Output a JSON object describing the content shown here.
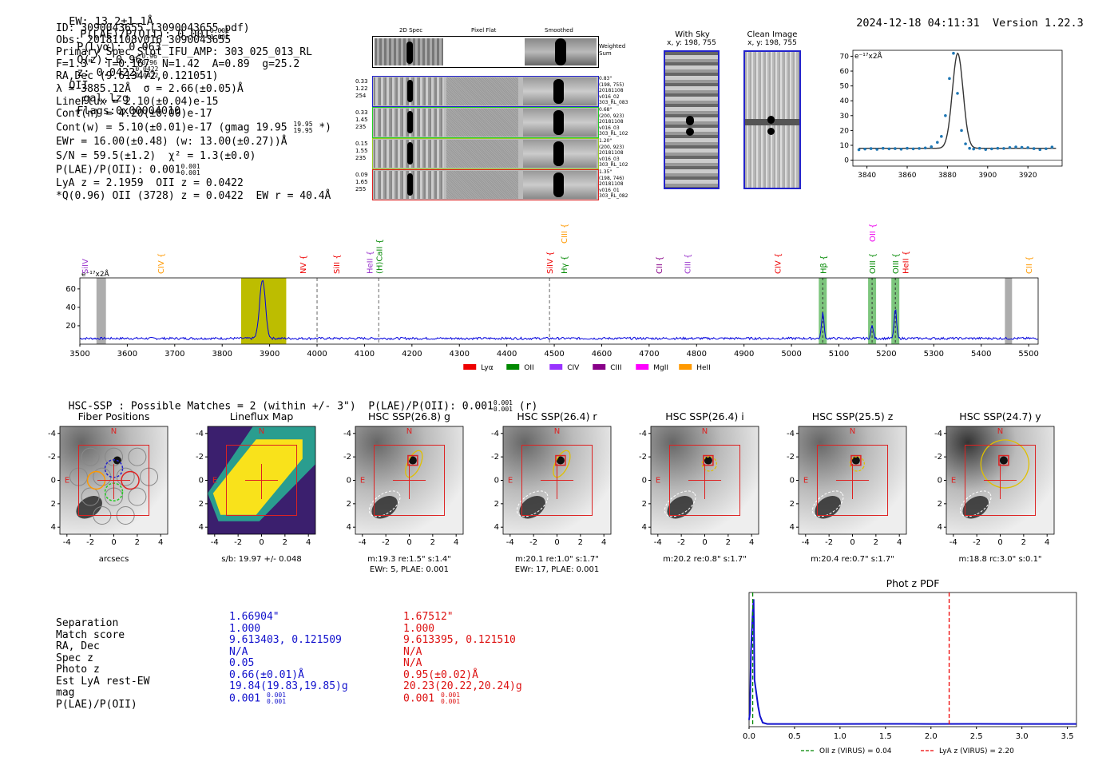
{
  "header": {
    "ew": "EW: 13.2±1.1Å",
    "plae_lbl": "P(LAE)/P(OII): 0.001",
    "plae_sup": "0.001",
    "plae_sub": "0.001",
    "plya": "P(Lyα): 0.063",
    "qz_lbl": "Q(z): 0.96",
    "qz_sup": "0.96",
    "qz_sub": "0.96",
    "z_lbl": "z: 0.0422",
    "z_sup": "0.0422",
    "z_sub": "0.0422",
    "z_line": "OII",
    "class": "gal,lzg",
    "flags": "Flags:0x00004010",
    "date": "2024-12-18 04:11:31",
    "version": "Version 1.22.3"
  },
  "info": {
    "id": "ID: 3090043655 (3090043655.pdf)",
    "obs": "Obs: 20181108v016_3090043655",
    "primary": "Primary Spec_Slot_IFU_AMP: 303_025_013_RL",
    "f_line": "F=1.3\"  T=0.167  N=1.42  A=0.89  g=25.2",
    "radec": "RA,Dec (9.613472,0.121051)",
    "lambda": "λ = 3885.12Å  σ = 2.66(±0.05)Å",
    "lineflux": "LineFlux = 2.10(±0.04)e-15",
    "contn": "Cont(n) = 4.20(±0.00)e-17",
    "contw_a": "Cont(w) = 5.10(±0.01)e-17 (gmag 19.95",
    "contw_sup": "19.95",
    "contw_sub": "19.95",
    "contw_b": "*)",
    "ewr": "EWr = 16.00(±0.48) (w: 13.00(±0.27))Å",
    "sn": "S/N = 59.5(±1.2)  χ² = 1.3(±0.0)",
    "plae_a": "P(LAE)/P(OII): 0.001",
    "plae_sup": "0.001",
    "plae_sub": "0.001",
    "lya": "LyA z = 2.1959  OII z = 0.0422",
    "qline": "*Q(0.96) OII (3728) z = 0.0422  EW r = 40.4Å"
  },
  "cutouts": {
    "col_labels": [
      "2D Spec",
      "Pixel Flat",
      "Smoothed"
    ],
    "weighted_label": "Weighted Sum",
    "rows": [
      {
        "left": [
          "0.33",
          "1.22",
          "254"
        ],
        "right": [
          "0.83\"",
          "(198, 755)",
          "20181108",
          "v016_02",
          "303_RL_083"
        ],
        "color": "#2222cc"
      },
      {
        "left": [
          "0.33",
          "1.45",
          "235"
        ],
        "right": [
          "0.68\"",
          "(200, 923)",
          "20181108",
          "v016_03",
          "303_RL_102"
        ],
        "color": "#22cc22"
      },
      {
        "left": [
          "0.15",
          "1.55",
          "235"
        ],
        "right": [
          "1.20\"",
          "(200, 923)",
          "20181108",
          "v016_03",
          "303_RL_102"
        ],
        "color": "#99cc22"
      },
      {
        "left": [
          "0.09",
          "1.65",
          "255"
        ],
        "right": [
          "1.35\"",
          "(198, 746)",
          "20181108",
          "v016_01",
          "303_RL_082"
        ],
        "color": "#dd2222"
      }
    ],
    "with_sky": "With Sky",
    "with_sky_xy": "x, y: 198, 755",
    "clean": "Clean Image",
    "clean_xy": "x, y: 198, 755"
  },
  "zoom_chart": {
    "type": "line",
    "ylabel": "e⁻¹⁷x2Å",
    "xticks": [
      3840,
      3860,
      3880,
      3900,
      3920
    ],
    "yticks": [
      0,
      10,
      20,
      30,
      40,
      50,
      60,
      70
    ],
    "xlim": [
      3833,
      3937
    ],
    "ylim": [
      -4,
      74
    ],
    "data_x": [
      3836,
      3839,
      3842,
      3845,
      3848,
      3851,
      3854,
      3857,
      3860,
      3863,
      3866,
      3869,
      3872,
      3875,
      3877,
      3879,
      3881,
      3883,
      3885,
      3887,
      3889,
      3891,
      3893,
      3896,
      3899,
      3902,
      3905,
      3908,
      3911,
      3914,
      3917,
      3920,
      3923,
      3926,
      3929,
      3932
    ],
    "data_y": [
      7,
      7.5,
      7.8,
      7.3,
      8,
      7.6,
      7.8,
      7.4,
      8,
      7.6,
      7.9,
      8.2,
      9,
      12,
      16,
      30,
      55,
      72,
      45,
      20,
      11,
      8,
      7.5,
      8,
      7.2,
      7.6,
      8,
      7.9,
      8.5,
      8.9,
      8.6,
      8.4,
      7.8,
      7.1,
      7.7,
      8.8
    ]
  },
  "full_spectrum": {
    "type": "line",
    "ylabel": "e⁻¹⁷x2Å",
    "xticks": [
      3500,
      3600,
      3700,
      3800,
      3900,
      4000,
      4100,
      4200,
      4300,
      4400,
      4500,
      4600,
      4700,
      4800,
      4900,
      5000,
      5100,
      5200,
      5300,
      5400,
      5500
    ],
    "yticks": [
      20,
      40,
      60
    ],
    "xlim": [
      3500,
      5520
    ],
    "ylim": [
      0,
      72
    ],
    "line_labels": [
      {
        "text": "SiIV",
        "x": 3510,
        "color": "#9933cc"
      },
      {
        "text": "CIV {",
        "x": 3670,
        "color": "#ff9900"
      },
      {
        "text": "NV {",
        "x": 3970,
        "color": "#ee0000"
      },
      {
        "text": "SiII {",
        "x": 4040,
        "color": "#ee0000"
      },
      {
        "text": "HeII {",
        "x": 4110,
        "color": "#9933cc"
      },
      {
        "text": "(H)CaII {",
        "x": 4130,
        "color": "#008800"
      },
      {
        "text": "SiIV {",
        "x": 4490,
        "color": "#ee0000"
      },
      {
        "text": "Hγ {",
        "x": 4520,
        "color": "#008800"
      },
      {
        "text": "CIII {",
        "x": 4520,
        "color": "#ff9900"
      },
      {
        "text": "CII {",
        "x": 4720,
        "color": "#880088"
      },
      {
        "text": "CIII {",
        "x": 4780,
        "color": "#9933cc"
      },
      {
        "text": "CIV {",
        "x": 4970,
        "color": "#ee0000"
      },
      {
        "text": "Hβ {",
        "x": 5066,
        "color": "#008800"
      },
      {
        "text": "OIII {",
        "x": 5170,
        "color": "#008800"
      },
      {
        "text": "OII {",
        "x": 5170,
        "color": "#ee00ee"
      },
      {
        "text": "OIII {",
        "x": 5219,
        "color": "#008800"
      },
      {
        "text": "HeII {",
        "x": 5240,
        "color": "#ee0000"
      },
      {
        "text": "CII {",
        "x": 5500,
        "color": "#ff9900"
      }
    ],
    "legend": [
      {
        "name": "Lyα",
        "color": "#ee0000"
      },
      {
        "name": "OII",
        "color": "#008800"
      },
      {
        "name": "CIV",
        "color": "#9933ff"
      },
      {
        "name": "CIII",
        "color": "#880088"
      },
      {
        "name": "MgII",
        "color": "#ff00ff"
      },
      {
        "name": "HeII",
        "color": "#ff9900"
      }
    ]
  },
  "hsc": {
    "title_a": "HSC-SSP : Possible Matches = 2 (within +/- 3\")  P(LAE)/P(OII): 0.001",
    "title_sup": "0.001",
    "title_sub": "0.001",
    "title_b": "(r)",
    "panels": [
      {
        "title": "Fiber Positions",
        "cap1": "arcsecs",
        "cap2": ""
      },
      {
        "title": "Lineflux Map",
        "cap1": "s/b: 19.97 +/- 0.048",
        "cap2": ""
      },
      {
        "title": "HSC SSP(26.8) g",
        "cap1": "m:19.3  re:1.5\"  s:1.4\"",
        "cap2": "EWr: 5, PLAE: 0.001"
      },
      {
        "title": "HSC SSP(26.4) r",
        "cap1": "m:20.1  re:1.0\"  s:1.7\"",
        "cap2": "EWr: 17, PLAE: 0.001"
      },
      {
        "title": "HSC SSP(26.4) i",
        "cap1": "m:20.2  re:0.8\"  s:1.7\"",
        "cap2": ""
      },
      {
        "title": "HSC SSP(25.5) z",
        "cap1": "m:20.4  re:0.7\"  s:1.7\"",
        "cap2": ""
      },
      {
        "title": "HSC SSP(24.7) y",
        "cap1": "m:18.8  rc:3.0\"  s:0.1\"",
        "cap2": ""
      }
    ],
    "axis_ticks": [
      "-4",
      "-2",
      "0",
      "2",
      "4"
    ],
    "north": "N",
    "east": "E"
  },
  "matches": {
    "labels": [
      "Separation",
      "Match score",
      "RA, Dec",
      "Spec z",
      "Photo z",
      "Est LyA rest-EW",
      "mag",
      "P(LAE)/P(OII)"
    ],
    "col1": [
      "1.66904\"",
      "1.000",
      "9.613403, 0.121509",
      "N/A",
      "0.05",
      "0.66(±0.01)Å",
      "19.84(19.83,19.85)g",
      "0.001"
    ],
    "col1_plae_sup": "0.001",
    "col1_plae_sub": "0.001",
    "col2": [
      "1.67512\"",
      "1.000",
      "9.613395, 0.121510",
      "N/A",
      "N/A",
      "0.95(±0.02)Å",
      "20.23(20.22,20.24)g",
      "0.001"
    ],
    "col2_plae_sup": "0.001",
    "col2_plae_sub": "0.001"
  },
  "chart_data": {
    "type": "line",
    "title": "Phot z PDF",
    "xlabel": "",
    "ylabel": "",
    "xticks": [
      0.0,
      0.5,
      1.0,
      1.5,
      2.0,
      2.5,
      3.0,
      3.5
    ],
    "xlim": [
      0,
      3.6
    ],
    "ylim": [
      0,
      1
    ],
    "x": [
      0.0,
      0.01,
      0.02,
      0.03,
      0.04,
      0.05,
      0.06,
      0.08,
      0.1,
      0.12,
      0.15,
      0.2,
      0.5,
      1.0,
      1.5,
      2.0,
      2.5,
      3.0,
      3.5,
      3.6
    ],
    "y": [
      0.05,
      0.1,
      0.55,
      0.7,
      0.85,
      0.95,
      0.35,
      0.25,
      0.15,
      0.08,
      0.03,
      0.02,
      0.02,
      0.02,
      0.021,
      0.02,
      0.021,
      0.02,
      0.02,
      0.02
    ],
    "vlines": [
      {
        "x": 0.04,
        "color": "#008800",
        "label": "OII z (VIRUS) = 0.04"
      },
      {
        "x": 2.2,
        "color": "#ee0000",
        "label": "LyA z (VIRUS) = 2.20"
      }
    ]
  }
}
